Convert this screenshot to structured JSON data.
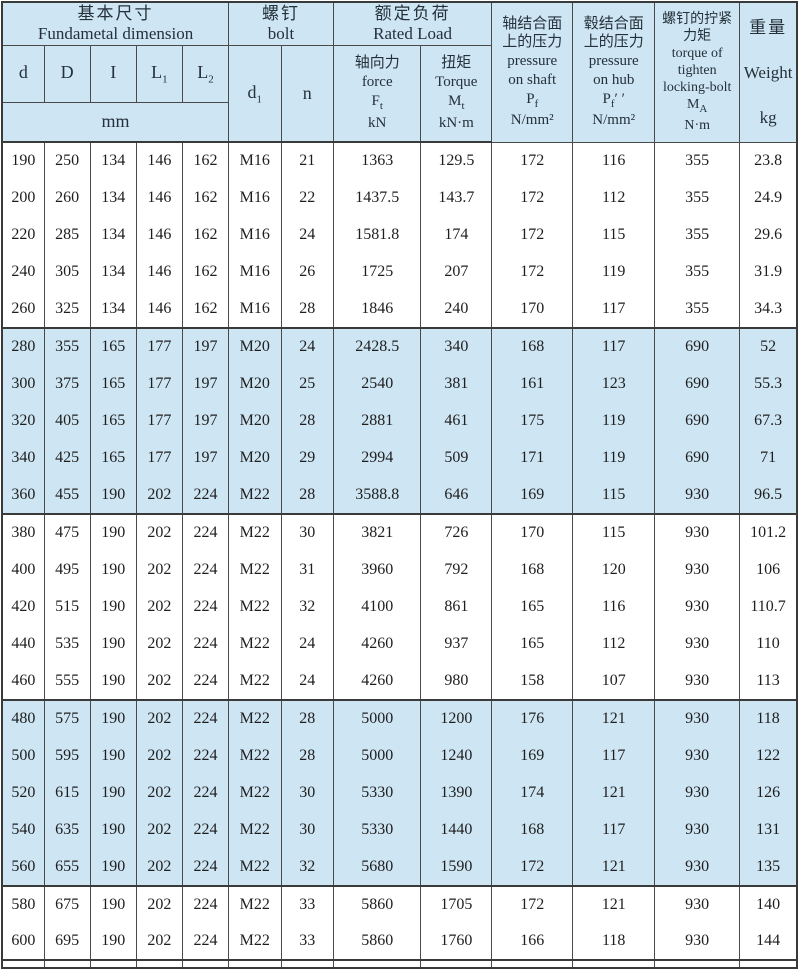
{
  "table": {
    "header": {
      "dim_group_zh": "基本尺寸",
      "dim_group_en": "Fundametal  dimension",
      "dim_cols": [
        {
          "base": "d",
          "sub": ""
        },
        {
          "base": "D",
          "sub": ""
        },
        {
          "base": "I",
          "sub": ""
        },
        {
          "base": "L",
          "sub": "1"
        },
        {
          "base": "L",
          "sub": "2"
        }
      ],
      "dim_unit": "mm",
      "bolt_zh": "螺钉",
      "bolt_en": "bolt",
      "bolt_d_base": "d",
      "bolt_d_sub": "1",
      "bolt_n": "n",
      "load_zh": "额定负荷",
      "load_en": "Rated  Load",
      "force_zh": "轴向力",
      "force_en": "force",
      "force_sym_base": "F",
      "force_sym_sub": "t",
      "force_unit": "kN",
      "torque_zh": "扭矩",
      "torque_en": "Torque",
      "torque_sym_base": "M",
      "torque_sym_sub": "t",
      "torque_unit": "kN·m",
      "pshaft": {
        "zh1": "轴结合面",
        "zh2": "上的压力",
        "en1": "pressure",
        "en2": "on  shaft",
        "sym_base": "P",
        "sym_sub": "f",
        "sym_suffix": "",
        "unit": "N/mm²"
      },
      "phub": {
        "zh1": "毂结合面",
        "zh2": "上的压力",
        "en1": "pressure",
        "en2": "on  hub",
        "sym_base": "P",
        "sym_sub": "f",
        "sym_suffix": "′ ′",
        "unit": "N/mm²"
      },
      "tighten": {
        "zh1": "螺钉的拧紧",
        "zh2": "力矩",
        "en1": "torque of",
        "en2": "tighten",
        "en3": "locking-bolt",
        "sym_base": "M",
        "sym_sub": "A",
        "unit": "N·m"
      },
      "weight_zh": "重量",
      "weight_en": "Weight",
      "weight_unit": "kg"
    },
    "column_keys": [
      "d",
      "D",
      "I",
      "L1",
      "L2",
      "d1",
      "n",
      "force",
      "torque",
      "pressure-shaft",
      "pressure-hub",
      "tighten-torque",
      "weight"
    ],
    "colors": {
      "shaded_row_bg": "#cee5f3",
      "header_bg": "#cee5f3",
      "grid_line": "#4a4a4a",
      "block_line": "#3a3a3a",
      "text": "#1e1e1e"
    },
    "blocks": [
      {
        "shaded": false,
        "rows": [
          [
            "190",
            "250",
            "134",
            "146",
            "162",
            "M16",
            "21",
            "1363",
            "129.5",
            "172",
            "116",
            "355",
            "23.8"
          ],
          [
            "200",
            "260",
            "134",
            "146",
            "162",
            "M16",
            "22",
            "1437.5",
            "143.7",
            "172",
            "112",
            "355",
            "24.9"
          ],
          [
            "220",
            "285",
            "134",
            "146",
            "162",
            "M16",
            "24",
            "1581.8",
            "174",
            "172",
            "115",
            "355",
            "29.6"
          ],
          [
            "240",
            "305",
            "134",
            "146",
            "162",
            "M16",
            "26",
            "1725",
            "207",
            "172",
            "119",
            "355",
            "31.9"
          ],
          [
            "260",
            "325",
            "134",
            "146",
            "162",
            "M16",
            "28",
            "1846",
            "240",
            "170",
            "117",
            "355",
            "34.3"
          ]
        ]
      },
      {
        "shaded": true,
        "rows": [
          [
            "280",
            "355",
            "165",
            "177",
            "197",
            "M20",
            "24",
            "2428.5",
            "340",
            "168",
            "117",
            "690",
            "52"
          ],
          [
            "300",
            "375",
            "165",
            "177",
            "197",
            "M20",
            "25",
            "2540",
            "381",
            "161",
            "123",
            "690",
            "55.3"
          ],
          [
            "320",
            "405",
            "165",
            "177",
            "197",
            "M20",
            "28",
            "2881",
            "461",
            "175",
            "119",
            "690",
            "67.3"
          ],
          [
            "340",
            "425",
            "165",
            "177",
            "197",
            "M20",
            "29",
            "2994",
            "509",
            "171",
            "119",
            "690",
            "71"
          ],
          [
            "360",
            "455",
            "190",
            "202",
            "224",
            "M22",
            "28",
            "3588.8",
            "646",
            "169",
            "115",
            "930",
            "96.5"
          ]
        ]
      },
      {
        "shaded": false,
        "rows": [
          [
            "380",
            "475",
            "190",
            "202",
            "224",
            "M22",
            "30",
            "3821",
            "726",
            "170",
            "115",
            "930",
            "101.2"
          ],
          [
            "400",
            "495",
            "190",
            "202",
            "224",
            "M22",
            "31",
            "3960",
            "792",
            "168",
            "120",
            "930",
            "106"
          ],
          [
            "420",
            "515",
            "190",
            "202",
            "224",
            "M22",
            "32",
            "4100",
            "861",
            "165",
            "116",
            "930",
            "110.7"
          ],
          [
            "440",
            "535",
            "190",
            "202",
            "224",
            "M22",
            "24",
            "4260",
            "937",
            "165",
            "112",
            "930",
            "110"
          ],
          [
            "460",
            "555",
            "190",
            "202",
            "224",
            "M22",
            "24",
            "4260",
            "980",
            "158",
            "107",
            "930",
            "113"
          ]
        ]
      },
      {
        "shaded": true,
        "rows": [
          [
            "480",
            "575",
            "190",
            "202",
            "224",
            "M22",
            "28",
            "5000",
            "1200",
            "176",
            "121",
            "930",
            "118"
          ],
          [
            "500",
            "595",
            "190",
            "202",
            "224",
            "M22",
            "28",
            "5000",
            "1240",
            "169",
            "117",
            "930",
            "122"
          ],
          [
            "520",
            "615",
            "190",
            "202",
            "224",
            "M22",
            "30",
            "5330",
            "1390",
            "174",
            "121",
            "930",
            "126"
          ],
          [
            "540",
            "635",
            "190",
            "202",
            "224",
            "M22",
            "30",
            "5330",
            "1440",
            "168",
            "117",
            "930",
            "131"
          ],
          [
            "560",
            "655",
            "190",
            "202",
            "224",
            "M22",
            "32",
            "5680",
            "1590",
            "172",
            "121",
            "930",
            "135"
          ]
        ]
      },
      {
        "shaded": false,
        "rows": [
          [
            "580",
            "675",
            "190",
            "202",
            "224",
            "M22",
            "33",
            "5860",
            "1705",
            "172",
            "121",
            "930",
            "140"
          ],
          [
            "600",
            "695",
            "190",
            "202",
            "224",
            "M22",
            "33",
            "5860",
            "1760",
            "166",
            "118",
            "930",
            "144"
          ]
        ]
      }
    ]
  }
}
